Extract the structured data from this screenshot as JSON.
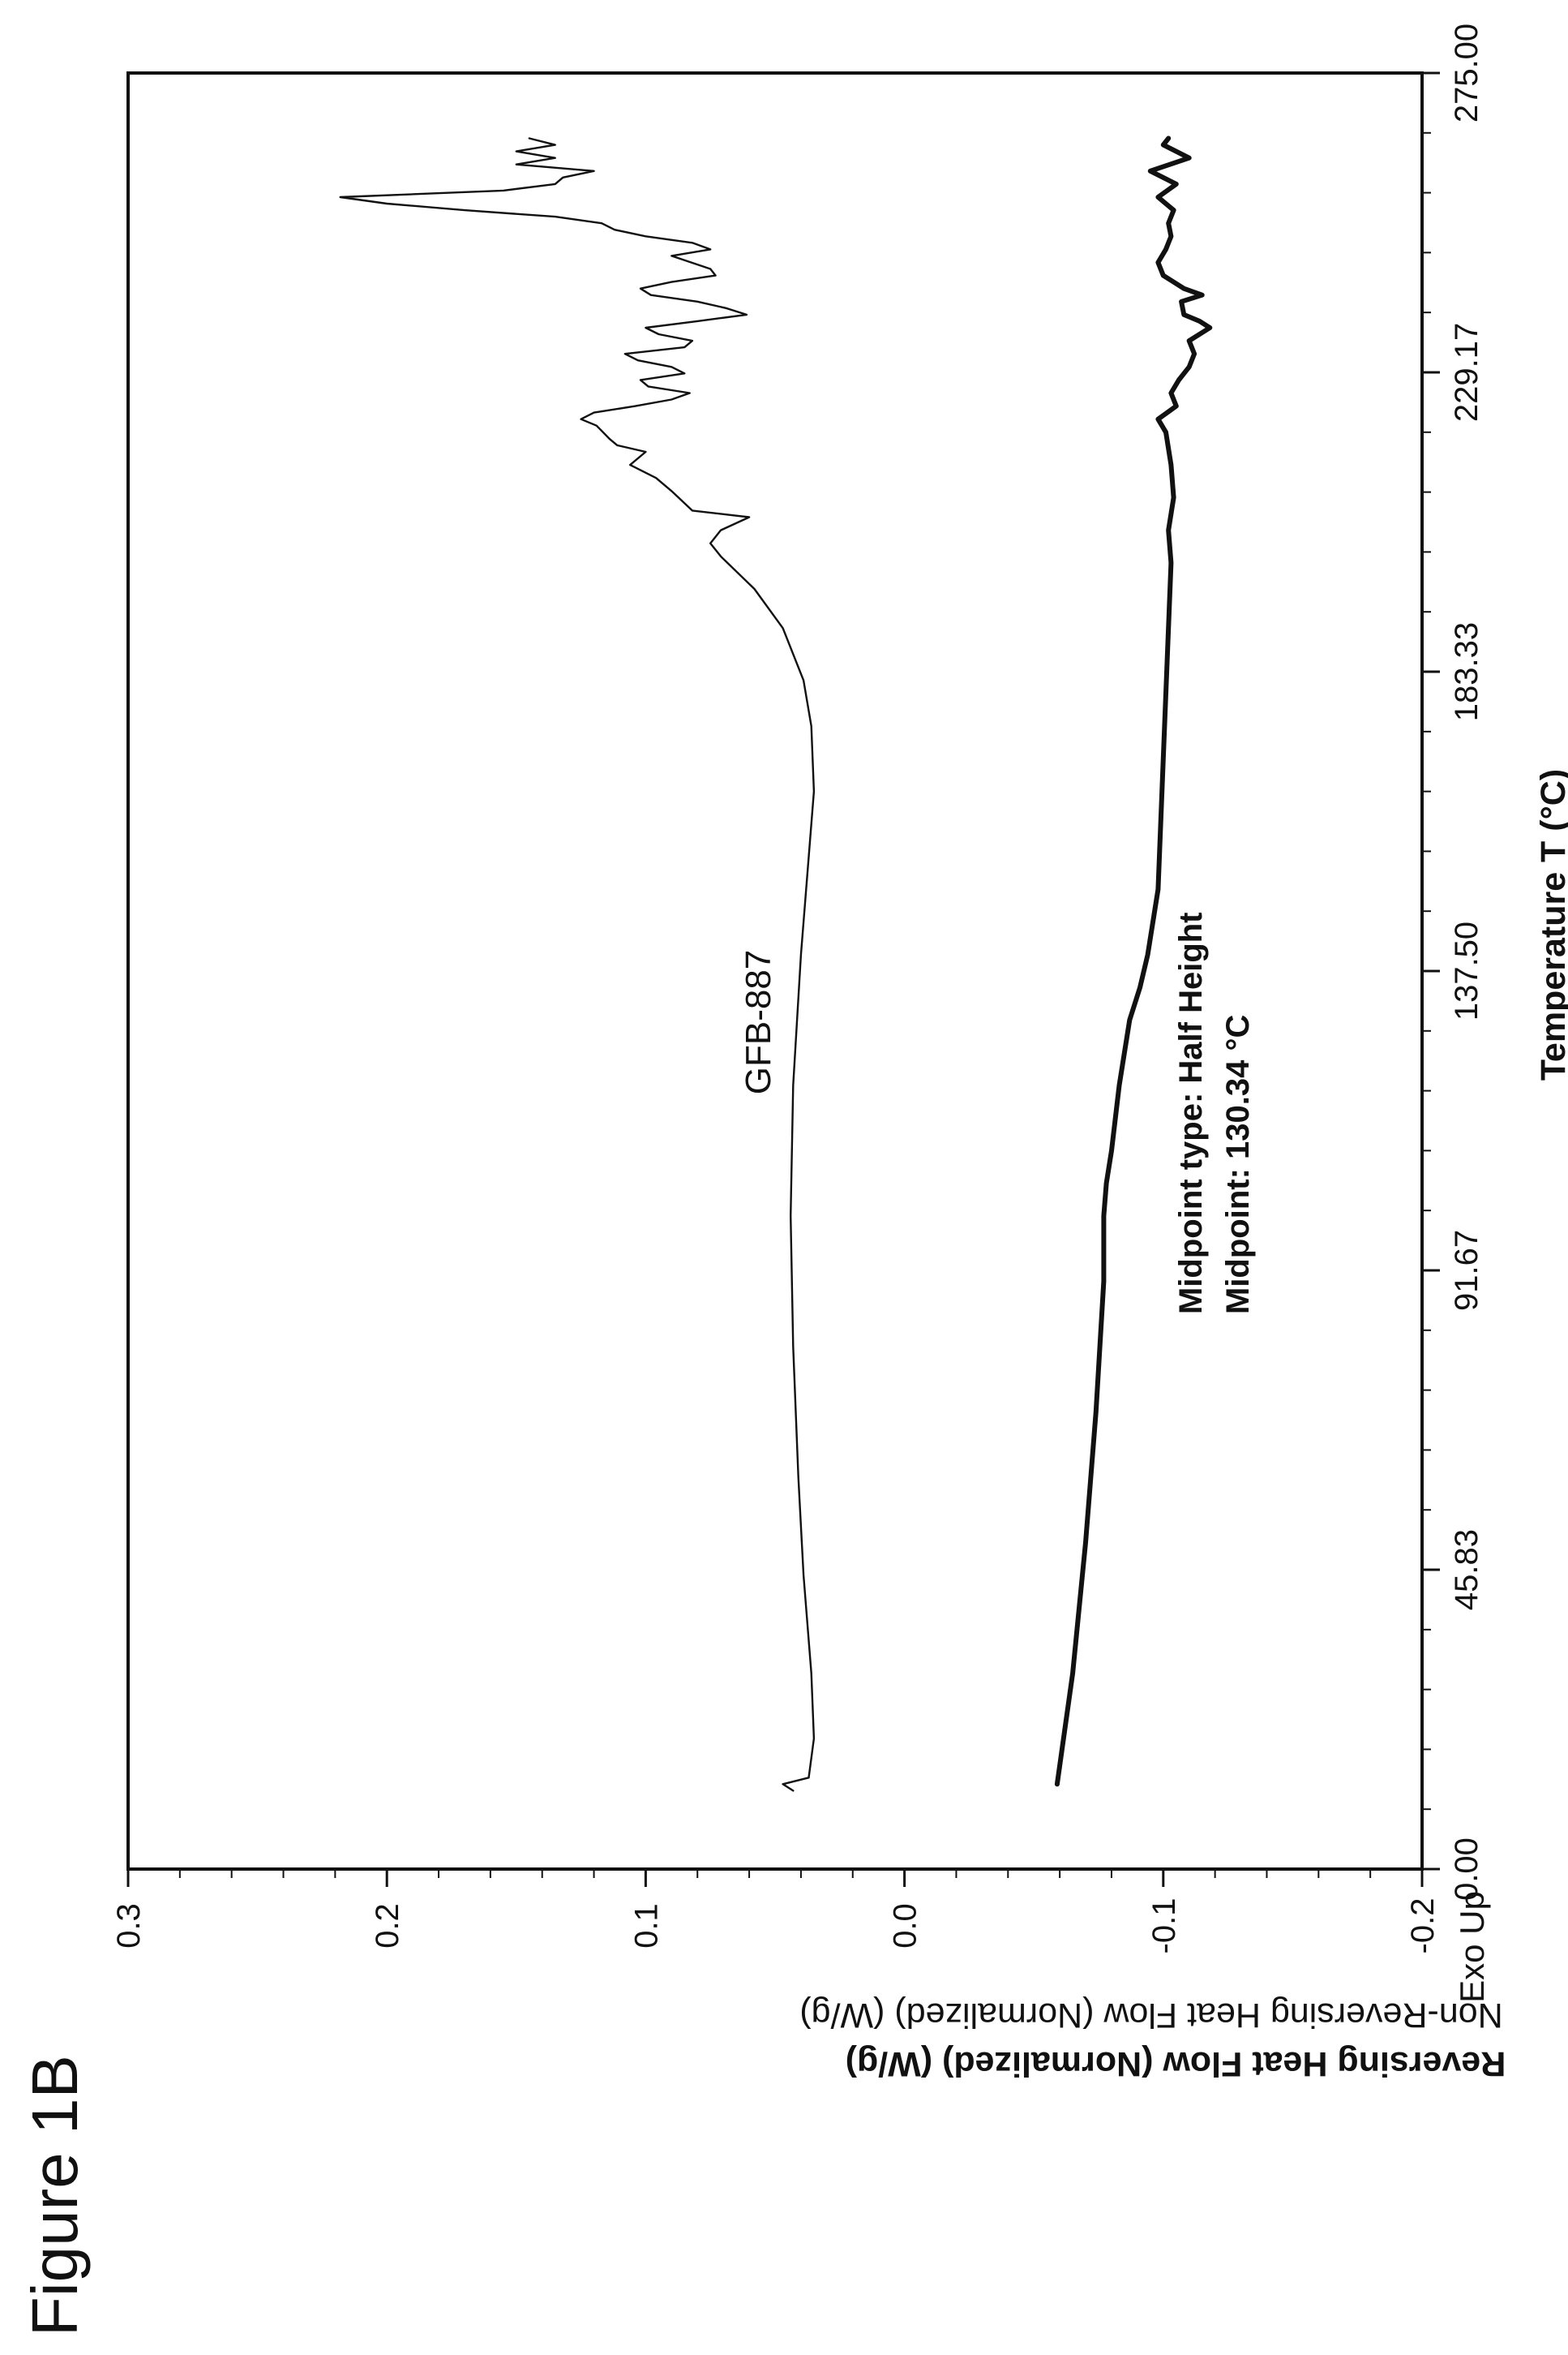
{
  "figure_label": "Figure 1B",
  "chart_data": {
    "type": "line",
    "title": "GFB-887",
    "xlabel": "Temperature T (°C)",
    "ylabel_primary": "Reversing Heat Flow (Normalized) (W/g)",
    "ylabel_secondary": "Non-Reversing Heat Flow (Normalized) (W/g)",
    "exo_label": "Exo Up",
    "xlim": [
      0,
      275
    ],
    "ylim": [
      -0.2,
      0.3
    ],
    "x_ticks": [
      "0.00",
      "45.83",
      "91.67",
      "137.50",
      "183.33",
      "229.17",
      "275.00"
    ],
    "y_ticks": [
      "-0.2",
      "-0.1",
      "0.0",
      "0.1",
      "0.2",
      "0.3"
    ],
    "grid": false,
    "annotation": {
      "line1": "Midpoint type: Half Height",
      "line2": "Midpoint: 130.34 °C",
      "x": 130.34
    },
    "series": [
      {
        "name": "Non-Reversing Heat Flow (Normalized) (W/g)",
        "style": "thin",
        "color": "#111111",
        "points": [
          [
            12,
            0.043
          ],
          [
            13,
            0.047
          ],
          [
            14,
            0.037
          ],
          [
            20,
            0.035
          ],
          [
            30,
            0.036
          ],
          [
            45,
            0.039
          ],
          [
            60,
            0.041
          ],
          [
            80,
            0.043
          ],
          [
            100,
            0.044
          ],
          [
            120,
            0.043
          ],
          [
            140,
            0.04
          ],
          [
            155,
            0.037
          ],
          [
            165,
            0.035
          ],
          [
            175,
            0.036
          ],
          [
            182,
            0.039
          ],
          [
            190,
            0.047
          ],
          [
            196,
            0.058
          ],
          [
            201,
            0.071
          ],
          [
            203,
            0.075
          ],
          [
            205,
            0.071
          ],
          [
            207,
            0.06
          ],
          [
            208,
            0.082
          ],
          [
            211,
            0.09
          ],
          [
            213,
            0.096
          ],
          [
            215,
            0.106
          ],
          [
            217,
            0.1
          ],
          [
            218,
            0.111
          ],
          [
            219,
            0.114
          ],
          [
            221,
            0.119
          ],
          [
            222,
            0.125
          ],
          [
            223,
            0.12
          ],
          [
            224,
            0.104
          ],
          [
            225,
            0.09
          ],
          [
            226,
            0.083
          ],
          [
            227,
            0.099
          ],
          [
            228,
            0.102
          ],
          [
            229,
            0.085
          ],
          [
            230,
            0.09
          ],
          [
            231,
            0.103
          ],
          [
            232,
            0.108
          ],
          [
            233,
            0.085
          ],
          [
            234,
            0.082
          ],
          [
            235,
            0.095
          ],
          [
            236,
            0.1
          ],
          [
            237,
            0.08
          ],
          [
            238,
            0.061
          ],
          [
            239,
            0.069
          ],
          [
            240,
            0.08
          ],
          [
            241,
            0.098
          ],
          [
            242,
            0.102
          ],
          [
            243,
            0.09
          ],
          [
            244,
            0.073
          ],
          [
            245,
            0.075
          ],
          [
            247,
            0.09
          ],
          [
            248,
            0.075
          ],
          [
            249,
            0.082
          ],
          [
            250,
            0.1
          ],
          [
            251,
            0.112
          ],
          [
            252,
            0.117
          ],
          [
            253,
            0.135
          ],
          [
            254,
            0.17
          ],
          [
            255,
            0.2
          ],
          [
            256,
            0.218
          ],
          [
            257,
            0.155
          ],
          [
            258,
            0.135
          ],
          [
            259,
            0.132
          ],
          [
            260,
            0.12
          ],
          [
            261,
            0.15
          ],
          [
            262,
            0.135
          ],
          [
            263,
            0.15
          ],
          [
            264,
            0.135
          ],
          [
            265,
            0.145
          ]
        ]
      },
      {
        "name": "Reversing Heat Flow (Normalized) (W/g)",
        "style": "thick",
        "color": "#111111",
        "points": [
          [
            13,
            -0.059
          ],
          [
            30,
            -0.065
          ],
          [
            50,
            -0.07
          ],
          [
            70,
            -0.074
          ],
          [
            90,
            -0.077
          ],
          [
            100,
            -0.077
          ],
          [
            105,
            -0.078
          ],
          [
            110,
            -0.08
          ],
          [
            120,
            -0.083
          ],
          [
            130,
            -0.087
          ],
          [
            135,
            -0.091
          ],
          [
            140,
            -0.094
          ],
          [
            145,
            -0.096
          ],
          [
            150,
            -0.098
          ],
          [
            160,
            -0.099
          ],
          [
            170,
            -0.1
          ],
          [
            180,
            -0.101
          ],
          [
            190,
            -0.102
          ],
          [
            200,
            -0.103
          ],
          [
            205,
            -0.102
          ],
          [
            210,
            -0.104
          ],
          [
            215,
            -0.103
          ],
          [
            220,
            -0.101
          ],
          [
            222,
            -0.098
          ],
          [
            224,
            -0.105
          ],
          [
            226,
            -0.103
          ],
          [
            228,
            -0.106
          ],
          [
            230,
            -0.11
          ],
          [
            232,
            -0.112
          ],
          [
            234,
            -0.11
          ],
          [
            236,
            -0.118
          ],
          [
            237,
            -0.114
          ],
          [
            238,
            -0.108
          ],
          [
            240,
            -0.107
          ],
          [
            241,
            -0.115
          ],
          [
            242,
            -0.108
          ],
          [
            243,
            -0.104
          ],
          [
            244,
            -0.1
          ],
          [
            246,
            -0.098
          ],
          [
            248,
            -0.101
          ],
          [
            250,
            -0.103
          ],
          [
            252,
            -0.102
          ],
          [
            254,
            -0.104
          ],
          [
            256,
            -0.098
          ],
          [
            258,
            -0.105
          ],
          [
            260,
            -0.095
          ],
          [
            262,
            -0.11
          ],
          [
            264,
            -0.1
          ],
          [
            265,
            -0.102
          ]
        ]
      }
    ]
  }
}
